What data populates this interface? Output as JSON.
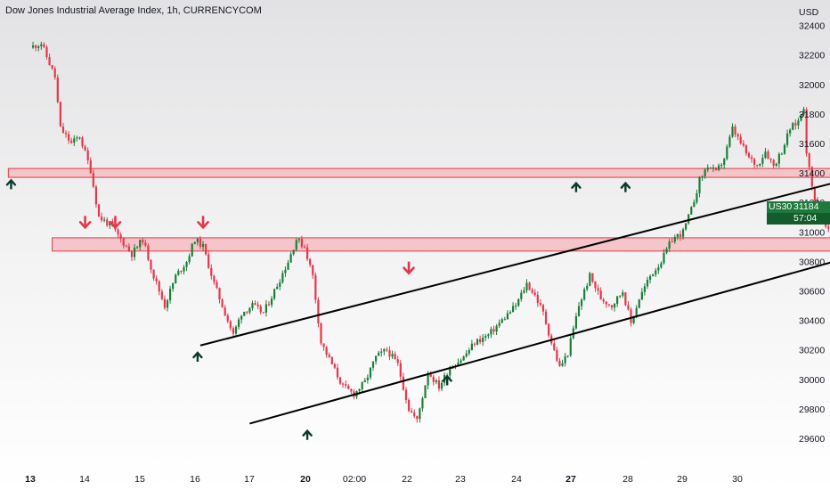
{
  "header": {
    "title": "Dow Jones Industrial Average Index, 1h, CURRENCYCOM"
  },
  "price_axis": {
    "currency": "USD"
  },
  "price_tag": {
    "symbol": "US30",
    "price": "31184",
    "countdown": "57:04",
    "color": "#1e7a3c"
  },
  "colors": {
    "up": "#1a7f37",
    "down": "#e5374a",
    "zone_fill": "#f4b6bb",
    "zone_stroke": "#e5374a",
    "trendline": "#000000",
    "up_arrow": "#0b3b2e",
    "down_arrow": "#e5374a"
  },
  "chart_data": {
    "type": "candlestick",
    "title": "Dow Jones Industrial Average Index, 1h, CURRENCYCOM",
    "symbol": "US30",
    "interval": "1h",
    "yaxis_unit": "USD",
    "ylim": [
      29500,
      32500
    ],
    "y_ticks": [
      29600,
      29800,
      30000,
      30200,
      30400,
      30600,
      30800,
      31000,
      31200,
      31400,
      31600,
      31800,
      32000,
      32200,
      32400
    ],
    "x_ticks": [
      {
        "label": "13",
        "bold": true
      },
      {
        "label": "14",
        "bold": false
      },
      {
        "label": "15",
        "bold": false
      },
      {
        "label": "16",
        "bold": false
      },
      {
        "label": "17",
        "bold": false
      },
      {
        "label": "20",
        "bold": true
      },
      {
        "label": "02:00",
        "bold": false
      },
      {
        "label": "22",
        "bold": false
      },
      {
        "label": "23",
        "bold": false
      },
      {
        "label": "24",
        "bold": false
      },
      {
        "label": "27",
        "bold": true
      },
      {
        "label": "28",
        "bold": false
      },
      {
        "label": "29",
        "bold": false
      },
      {
        "label": "30",
        "bold": false
      }
    ],
    "price_path": [
      [
        0.0,
        32250
      ],
      [
        0.2,
        32280
      ],
      [
        0.45,
        32050
      ],
      [
        0.55,
        31700
      ],
      [
        0.75,
        31600
      ],
      [
        0.9,
        31650
      ],
      [
        1.1,
        31420
      ],
      [
        1.25,
        31100
      ],
      [
        1.45,
        31050
      ],
      [
        1.65,
        30950
      ],
      [
        1.85,
        30850
      ],
      [
        2.05,
        30950
      ],
      [
        2.25,
        30700
      ],
      [
        2.45,
        30500
      ],
      [
        2.65,
        30700
      ],
      [
        2.85,
        30800
      ],
      [
        3.0,
        30950
      ],
      [
        3.15,
        30900
      ],
      [
        3.35,
        30650
      ],
      [
        3.55,
        30450
      ],
      [
        3.7,
        30300
      ],
      [
        3.85,
        30450
      ],
      [
        4.05,
        30500
      ],
      [
        4.25,
        30450
      ],
      [
        4.45,
        30600
      ],
      [
        4.7,
        30800
      ],
      [
        4.85,
        30950
      ],
      [
        5.0,
        30900
      ],
      [
        5.15,
        30700
      ],
      [
        5.3,
        30250
      ],
      [
        5.5,
        30100
      ],
      [
        5.7,
        29950
      ],
      [
        5.9,
        29900
      ],
      [
        6.1,
        29980
      ],
      [
        6.3,
        30150
      ],
      [
        6.5,
        30200
      ],
      [
        6.7,
        30100
      ],
      [
        6.9,
        29800
      ],
      [
        7.05,
        29720
      ],
      [
        7.25,
        30050
      ],
      [
        7.45,
        29950
      ],
      [
        7.65,
        30080
      ],
      [
        7.9,
        30150
      ],
      [
        8.1,
        30250
      ],
      [
        8.35,
        30300
      ],
      [
        8.6,
        30400
      ],
      [
        8.85,
        30500
      ],
      [
        9.05,
        30650
      ],
      [
        9.2,
        30570
      ],
      [
        9.35,
        30450
      ],
      [
        9.5,
        30250
      ],
      [
        9.65,
        30080
      ],
      [
        9.8,
        30180
      ],
      [
        10.0,
        30500
      ],
      [
        10.2,
        30700
      ],
      [
        10.4,
        30550
      ],
      [
        10.6,
        30500
      ],
      [
        10.8,
        30600
      ],
      [
        10.95,
        30380
      ],
      [
        11.1,
        30550
      ],
      [
        11.3,
        30700
      ],
      [
        11.5,
        30800
      ],
      [
        11.7,
        30950
      ],
      [
        11.9,
        31000
      ],
      [
        12.05,
        31150
      ],
      [
        12.2,
        31350
      ],
      [
        12.35,
        31450
      ],
      [
        12.5,
        31400
      ],
      [
        12.65,
        31500
      ],
      [
        12.8,
        31700
      ],
      [
        12.95,
        31600
      ],
      [
        13.1,
        31500
      ],
      [
        13.25,
        31450
      ],
      [
        13.4,
        31550
      ],
      [
        13.55,
        31450
      ],
      [
        13.7,
        31550
      ],
      [
        13.85,
        31700
      ],
      [
        14.0,
        31750
      ],
      [
        14.1,
        31850
      ],
      [
        14.15,
        31550
      ],
      [
        14.25,
        31300
      ],
      [
        14.4,
        31100
      ],
      [
        14.55,
        31000
      ],
      [
        14.7,
        30960
      ],
      [
        14.85,
        31000
      ],
      [
        15.0,
        30950
      ],
      [
        15.1,
        31050
      ],
      [
        15.2,
        31184
      ]
    ]
  },
  "annotations": {
    "zones": [
      {
        "from_day": -0.4,
        "to_day": 16.1,
        "low": 31370,
        "high": 31430
      },
      {
        "from_day": 0.4,
        "to_day": 16.4,
        "low": 30870,
        "high": 30960
      }
    ],
    "trendlines": [
      {
        "x1": 3.1,
        "y1": 30230,
        "x2": 16.4,
        "y2": 31500
      },
      {
        "x1": 4.0,
        "y1": 29700,
        "x2": 16.6,
        "y2": 31000
      }
    ],
    "projection": [
      [
        15.2,
        31184
      ],
      [
        15.4,
        31420
      ],
      [
        16.05,
        30890
      ]
    ],
    "up_arrows": [
      [
        -0.35,
        31350
      ],
      [
        3.05,
        30180
      ],
      [
        5.05,
        29650
      ],
      [
        7.6,
        30020
      ],
      [
        9.95,
        31330
      ],
      [
        10.85,
        31330
      ]
    ],
    "down_arrows": [
      [
        1.0,
        31030
      ],
      [
        1.55,
        31030
      ],
      [
        3.15,
        31030
      ],
      [
        6.9,
        30720
      ]
    ]
  }
}
